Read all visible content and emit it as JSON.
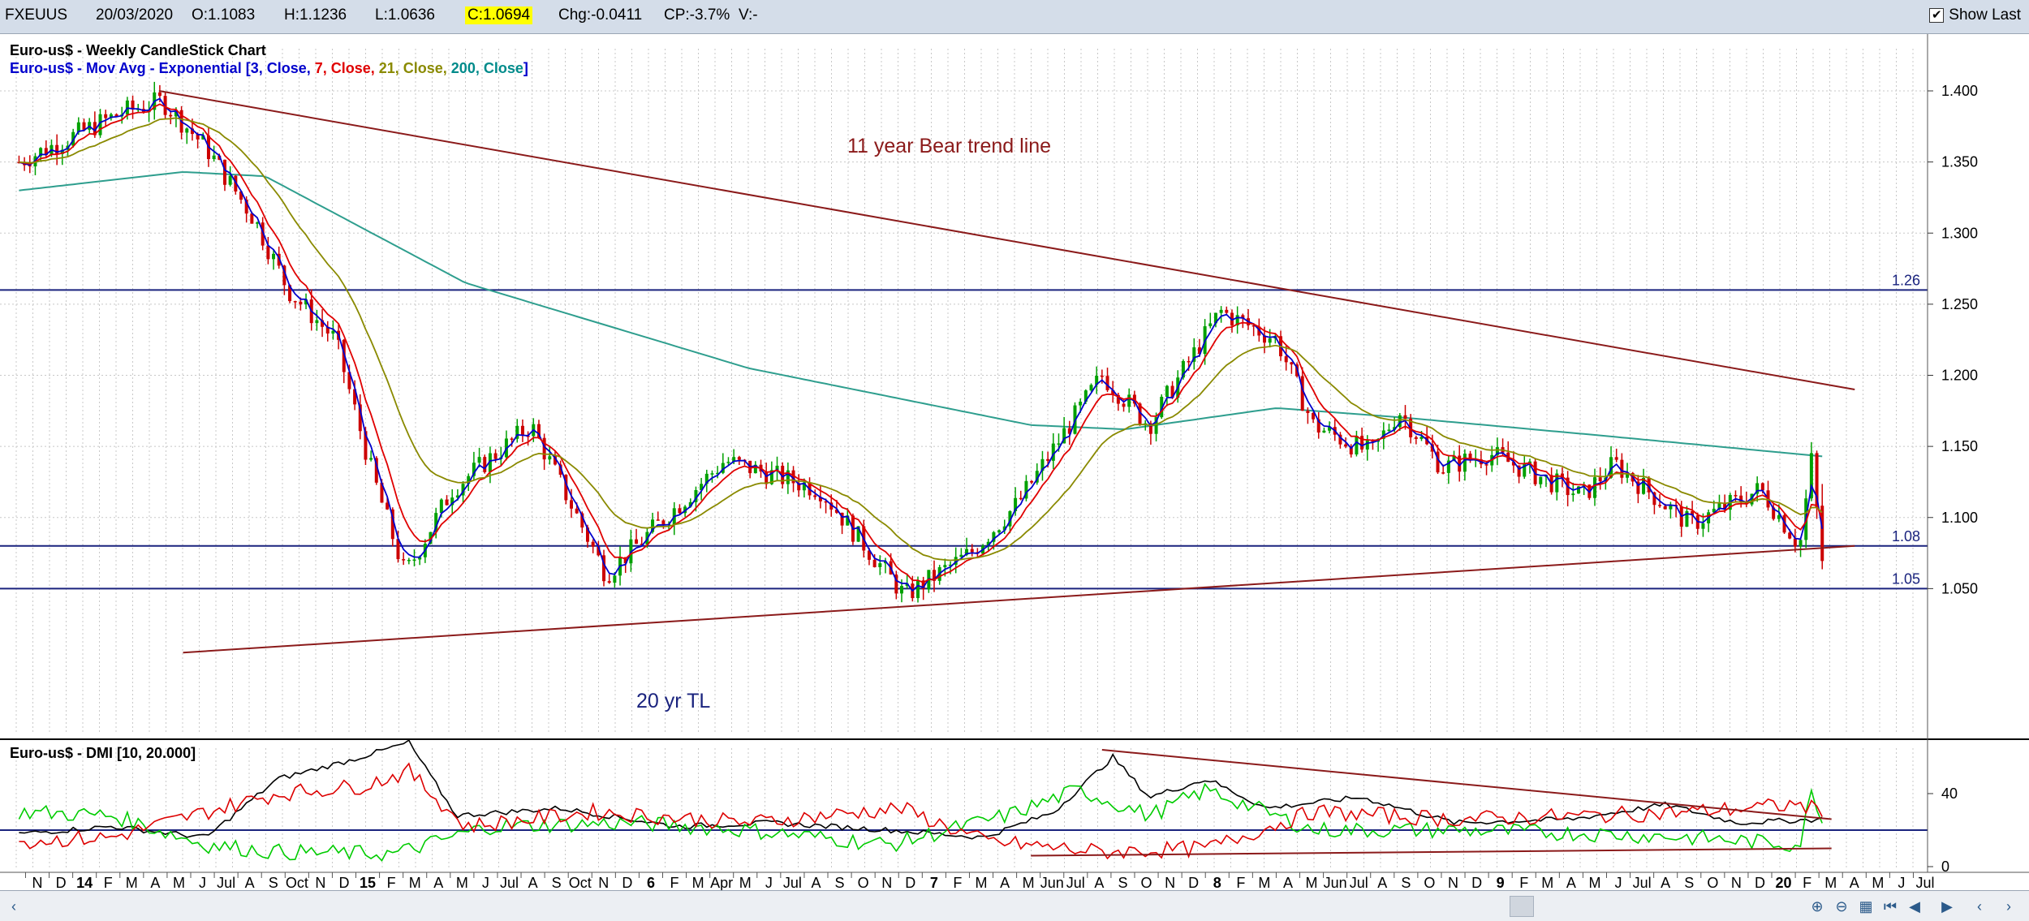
{
  "toolbar": {
    "symbol": "FXEUUS",
    "date": "20/03/2020",
    "open": "O:1.1083",
    "high": "H:1.1236",
    "low": "L:1.0636",
    "close": "C:1.0694",
    "change": "Chg:-0.0411",
    "change_pct": "CP:-3.7%",
    "volume": "V:-",
    "show_last_label": "Show Last",
    "show_last_checked": "✔"
  },
  "price_panel": {
    "title_line1": "Euro-us$ - Weekly CandleStick Chart",
    "title_line2_prefix": "Euro-us$ - Mov Avg - Exponential [",
    "ma_labels": [
      {
        "text": "3, Close",
        "color": "#0000cc"
      },
      {
        "text": "7, Close",
        "color": "#e00000"
      },
      {
        "text": "21, Close",
        "color": "#8a8a00"
      },
      {
        "text": "200, Close",
        "color": "#008b8b"
      }
    ],
    "annotation_bear": "11 year Bear trend line",
    "annotation_tl": "20 yr TL",
    "hline_labels": [
      "1.26",
      "1.08",
      "1.05"
    ],
    "y_ticks": [
      "1.400",
      "1.350",
      "1.300",
      "1.250",
      "1.200",
      "1.150",
      "1.100",
      "1.050"
    ]
  },
  "dmi_panel": {
    "title": "Euro-us$ - DMI [10, 20.000]",
    "y_ticks": [
      "40",
      "0"
    ]
  },
  "x_axis_labels": [
    "N",
    "D",
    "14",
    "F",
    "M",
    "A",
    "M",
    "J",
    "Jul",
    "A",
    "S",
    "Oct",
    "N",
    "D",
    "15",
    "F",
    "M",
    "A",
    "M",
    "J",
    "Jul",
    "A",
    "S",
    "Oct",
    "N",
    "D",
    "6",
    "F",
    "M",
    "Apr",
    "M",
    "J",
    "Jul",
    "A",
    "S",
    "O",
    "N",
    "D",
    "7",
    "F",
    "M",
    "A",
    "M",
    "Jun",
    "Jul",
    "A",
    "S",
    "O",
    "N",
    "D",
    "8",
    "F",
    "M",
    "A",
    "M",
    "Jun",
    "Jul",
    "A",
    "S",
    "O",
    "N",
    "D",
    "9",
    "F",
    "M",
    "A",
    "M",
    "J",
    "Jul",
    "A",
    "S",
    "O",
    "N",
    "D",
    "20",
    "F",
    "M",
    "A",
    "M",
    "J",
    "Jul"
  ],
  "colors": {
    "ema3": "#0000cc",
    "ema7": "#e00000",
    "ema21": "#8a8a00",
    "ema200": "#2e9e8e",
    "trend": "#8b1a1a",
    "hline": "#1a237e",
    "candle_up": "#00a000",
    "candle_down": "#cc0000",
    "dmi_adx": "#000000",
    "dmi_plus": "#00cc00",
    "dmi_minus": "#dd0000"
  },
  "chart_data": {
    "type": "candlestick",
    "title": "Euro-us$ - Weekly CandleStick Chart",
    "period": "Weekly, Nov 2013 – Mar 2020",
    "ylim": [
      1.0,
      1.43
    ],
    "y_scale": "linear",
    "grid": true,
    "last_bar": {
      "date": "20/03/2020",
      "open": 1.1083,
      "high": 1.1236,
      "low": 1.0636,
      "close": 1.0694
    },
    "price_path": [
      [
        "2013-11-01",
        1.35
      ],
      [
        "2014-03-15",
        1.385
      ],
      [
        "2014-05-05",
        1.393
      ],
      [
        "2014-07-01",
        1.36
      ],
      [
        "2014-09-01",
        1.31
      ],
      [
        "2014-10-15",
        1.26
      ],
      [
        "2014-12-15",
        1.225
      ],
      [
        "2015-02-01",
        1.13
      ],
      [
        "2015-03-15",
        1.06
      ],
      [
        "2015-05-15",
        1.12
      ],
      [
        "2015-08-25",
        1.165
      ],
      [
        "2015-11-30",
        1.06
      ],
      [
        "2016-05-01",
        1.14
      ],
      [
        "2016-09-01",
        1.12
      ],
      [
        "2016-12-20",
        1.045
      ],
      [
        "2017-03-15",
        1.075
      ],
      [
        "2017-05-15",
        1.11
      ],
      [
        "2017-09-01",
        1.2
      ],
      [
        "2017-11-01",
        1.165
      ],
      [
        "2018-02-01",
        1.245
      ],
      [
        "2018-04-15",
        1.225
      ],
      [
        "2018-06-01",
        1.165
      ],
      [
        "2018-08-15",
        1.145
      ],
      [
        "2018-09-20",
        1.175
      ],
      [
        "2018-11-15",
        1.135
      ],
      [
        "2019-01-15",
        1.145
      ],
      [
        "2019-05-15",
        1.115
      ],
      [
        "2019-06-25",
        1.138
      ],
      [
        "2019-10-01",
        1.095
      ],
      [
        "2019-12-31",
        1.12
      ],
      [
        "2020-02-20",
        1.08
      ],
      [
        "2020-03-06",
        1.14
      ],
      [
        "2020-03-20",
        1.069
      ]
    ],
    "ema200_path": [
      [
        "2013-11-01",
        1.33
      ],
      [
        "2014-06-01",
        1.343
      ],
      [
        "2014-09-15",
        1.34
      ],
      [
        "2015-06-01",
        1.265
      ],
      [
        "2016-06-01",
        1.205
      ],
      [
        "2017-06-01",
        1.165
      ],
      [
        "2017-10-01",
        1.162
      ],
      [
        "2018-04-15",
        1.177
      ],
      [
        "2018-10-01",
        1.17
      ],
      [
        "2019-06-01",
        1.158
      ],
      [
        "2020-03-20",
        1.143
      ]
    ],
    "horizontal_lines": [
      {
        "value": 1.26,
        "label": "1.26"
      },
      {
        "value": 1.08,
        "label": "1.08"
      },
      {
        "value": 1.05,
        "label": "1.05"
      }
    ],
    "trend_lines": [
      {
        "label": "11 year Bear trend line",
        "from": [
          "2014-05-01",
          1.4
        ],
        "to": [
          "2020-05-01",
          1.19
        ]
      },
      {
        "label": "20 yr TL",
        "from": [
          "2014-06-01",
          1.005
        ],
        "to": [
          "2020-05-01",
          1.08
        ]
      }
    ],
    "dmi": {
      "params": "10, 20.000",
      "ylim": [
        0,
        70
      ],
      "threshold": 20,
      "adx_path": [
        [
          "2013-11-01",
          18
        ],
        [
          "2014-03-01",
          22
        ],
        [
          "2014-07-01",
          16
        ],
        [
          "2014-10-01",
          48
        ],
        [
          "2015-01-01",
          58
        ],
        [
          "2015-03-20",
          68
        ],
        [
          "2015-05-20",
          28
        ],
        [
          "2015-10-01",
          32
        ],
        [
          "2016-03-01",
          22
        ],
        [
          "2016-07-01",
          24
        ],
        [
          "2016-12-01",
          20
        ],
        [
          "2017-04-01",
          16
        ],
        [
          "2017-07-01",
          30
        ],
        [
          "2017-09-15",
          60
        ],
        [
          "2017-11-01",
          38
        ],
        [
          "2018-01-15",
          48
        ],
        [
          "2018-04-01",
          32
        ],
        [
          "2018-08-01",
          38
        ],
        [
          "2018-12-01",
          24
        ],
        [
          "2019-05-01",
          26
        ],
        [
          "2019-09-01",
          34
        ],
        [
          "2019-12-01",
          24
        ],
        [
          "2020-03-20",
          26
        ]
      ],
      "plus_di_path": [
        [
          "2013-11-01",
          30
        ],
        [
          "2014-03-01",
          28
        ],
        [
          "2014-07-01",
          12
        ],
        [
          "2014-10-01",
          8
        ],
        [
          "2015-03-01",
          7
        ],
        [
          "2015-07-01",
          22
        ],
        [
          "2016-01-01",
          24
        ],
        [
          "2016-06-01",
          20
        ],
        [
          "2016-12-01",
          12
        ],
        [
          "2017-05-01",
          28
        ],
        [
          "2017-08-01",
          42
        ],
        [
          "2017-11-01",
          28
        ],
        [
          "2018-01-15",
          42
        ],
        [
          "2018-06-01",
          20
        ],
        [
          "2018-12-01",
          20
        ],
        [
          "2019-06-01",
          18
        ],
        [
          "2019-10-01",
          16
        ],
        [
          "2020-02-20",
          12
        ],
        [
          "2020-03-06",
          40
        ],
        [
          "2020-03-20",
          28
        ]
      ],
      "minus_di_path": [
        [
          "2013-11-01",
          14
        ],
        [
          "2014-03-01",
          16
        ],
        [
          "2014-07-01",
          30
        ],
        [
          "2014-10-01",
          40
        ],
        [
          "2015-01-15",
          44
        ],
        [
          "2015-03-20",
          52
        ],
        [
          "2015-06-01",
          22
        ],
        [
          "2015-11-15",
          30
        ],
        [
          "2016-06-01",
          24
        ],
        [
          "2016-12-15",
          32
        ],
        [
          "2017-04-01",
          14
        ],
        [
          "2017-09-01",
          8
        ],
        [
          "2018-01-15",
          10
        ],
        [
          "2018-06-01",
          30
        ],
        [
          "2018-12-01",
          26
        ],
        [
          "2019-06-01",
          28
        ],
        [
          "2019-10-01",
          30
        ],
        [
          "2020-02-20",
          34
        ],
        [
          "2020-03-20",
          30
        ]
      ],
      "trend_lines": [
        {
          "from": [
            "2017-09-01",
            64
          ],
          "to": [
            "2020-04-01",
            26
          ]
        },
        {
          "from": [
            "2017-06-01",
            6
          ],
          "to": [
            "2020-04-01",
            10
          ]
        }
      ]
    }
  }
}
